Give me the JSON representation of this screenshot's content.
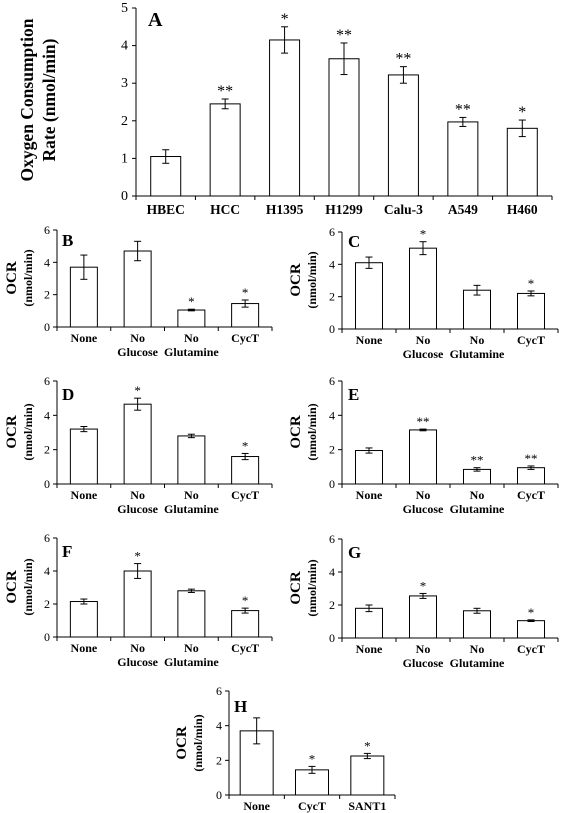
{
  "chart_data": [
    {
      "id": "A",
      "type": "bar",
      "panel_label": "A",
      "ylabel_lines": [
        "Oxygen Consumption",
        "Rate (nmol/min)"
      ],
      "categories": [
        "HBEC",
        "HCC",
        "H1395",
        "H1299",
        "Calu-3",
        "A549",
        "H460"
      ],
      "values": [
        1.05,
        2.45,
        4.15,
        3.65,
        3.22,
        1.97,
        1.8
      ],
      "errors": [
        0.18,
        0.13,
        0.35,
        0.42,
        0.22,
        0.12,
        0.22
      ],
      "significance": [
        "",
        "**",
        "*",
        "**",
        "**",
        "**",
        "*"
      ],
      "ylim": [
        0,
        5
      ],
      "yticks": [
        0,
        1,
        2,
        3,
        4,
        5
      ]
    },
    {
      "id": "B",
      "type": "bar",
      "panel_label": "B",
      "ylabel_lines": [
        "OCR",
        "(nmol/min)"
      ],
      "categories": [
        "None",
        "No",
        "No",
        "CycT"
      ],
      "category_sublabels": [
        "",
        "Glucose",
        "Glutamine",
        ""
      ],
      "values": [
        3.7,
        4.7,
        1.05,
        1.45
      ],
      "errors": [
        0.75,
        0.6,
        0.05,
        0.22
      ],
      "significance": [
        "",
        "",
        "*",
        "*"
      ],
      "ylim": [
        0,
        6
      ],
      "yticks": [
        0,
        2,
        4,
        6
      ]
    },
    {
      "id": "C",
      "type": "bar",
      "panel_label": "C",
      "ylabel_lines": [
        "OCR",
        "(nmol/min)"
      ],
      "categories": [
        "None",
        "No",
        "No",
        "CycT"
      ],
      "category_sublabels": [
        "",
        "Glucose",
        "Glutamine",
        ""
      ],
      "values": [
        4.1,
        5.0,
        2.4,
        2.2
      ],
      "errors": [
        0.35,
        0.4,
        0.3,
        0.15
      ],
      "significance": [
        "",
        "*",
        "",
        "*"
      ],
      "ylim": [
        0,
        6
      ],
      "yticks": [
        0,
        2,
        4,
        6
      ]
    },
    {
      "id": "D",
      "type": "bar",
      "panel_label": "D",
      "ylabel_lines": [
        "OCR",
        "(nmol/min)"
      ],
      "categories": [
        "None",
        "No",
        "No",
        "CycT"
      ],
      "category_sublabels": [
        "",
        "Glucose",
        "Glutamine",
        ""
      ],
      "values": [
        3.2,
        4.65,
        2.8,
        1.6
      ],
      "errors": [
        0.15,
        0.35,
        0.1,
        0.18
      ],
      "significance": [
        "",
        "*",
        "",
        "*"
      ],
      "ylim": [
        0,
        6
      ],
      "yticks": [
        0,
        2,
        4,
        6
      ]
    },
    {
      "id": "E",
      "type": "bar",
      "panel_label": "E",
      "ylabel_lines": [
        "OCR",
        "(nmol/min)"
      ],
      "categories": [
        "None",
        "No",
        "No",
        "CycT"
      ],
      "category_sublabels": [
        "",
        "Glucose",
        "Glutamine",
        ""
      ],
      "values": [
        1.95,
        3.15,
        0.85,
        0.95
      ],
      "errors": [
        0.15,
        0.05,
        0.1,
        0.1
      ],
      "significance": [
        "",
        "**",
        "**",
        "**"
      ],
      "ylim": [
        0,
        6
      ],
      "yticks": [
        0,
        2,
        4,
        6
      ]
    },
    {
      "id": "F",
      "type": "bar",
      "panel_label": "F",
      "ylabel_lines": [
        "OCR",
        "(nmol/min)"
      ],
      "categories": [
        "None",
        "No",
        "No",
        "CycT"
      ],
      "category_sublabels": [
        "",
        "Glucose",
        "Glutamine",
        ""
      ],
      "values": [
        2.15,
        4.0,
        2.8,
        1.6
      ],
      "errors": [
        0.15,
        0.45,
        0.1,
        0.15
      ],
      "significance": [
        "",
        "*",
        "",
        "*"
      ],
      "ylim": [
        0,
        6
      ],
      "yticks": [
        0,
        2,
        4,
        6
      ]
    },
    {
      "id": "G",
      "type": "bar",
      "panel_label": "G",
      "ylabel_lines": [
        "OCR",
        "(nmol/min)"
      ],
      "categories": [
        "None",
        "No",
        "No",
        "CycT"
      ],
      "category_sublabels": [
        "",
        "Glucose",
        "Glutamine",
        ""
      ],
      "values": [
        1.8,
        2.55,
        1.65,
        1.05
      ],
      "errors": [
        0.2,
        0.15,
        0.15,
        0.05
      ],
      "significance": [
        "",
        "*",
        "",
        "*"
      ],
      "ylim": [
        0,
        6
      ],
      "yticks": [
        0,
        2,
        4,
        6
      ]
    },
    {
      "id": "H",
      "type": "bar",
      "panel_label": "H",
      "ylabel_lines": [
        "OCR",
        "(nmol/min)"
      ],
      "categories": [
        "None",
        "CycT",
        "SANT1"
      ],
      "values": [
        3.7,
        1.45,
        2.25
      ],
      "errors": [
        0.75,
        0.2,
        0.15
      ],
      "significance": [
        "",
        "*",
        "*"
      ],
      "ylim": [
        0,
        6
      ],
      "yticks": [
        0,
        2,
        4,
        6
      ]
    }
  ]
}
